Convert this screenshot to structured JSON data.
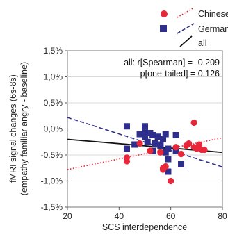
{
  "chart_data": {
    "type": "scatter",
    "xlabel": "SCS interdependence",
    "ylabel_lines": [
      "fMRI signal changes (6s-8s)",
      "(empathy familiar angry - baseline)"
    ],
    "xlim": [
      20,
      80
    ],
    "ylim": [
      -1.5,
      1.5
    ],
    "x_ticks": [
      20,
      40,
      60,
      80
    ],
    "x_tick_labels": [
      "20",
      "40",
      "60",
      "80"
    ],
    "y_ticks": [
      1.5,
      1.0,
      0.5,
      0.0,
      -0.5,
      -1.0,
      -1.5
    ],
    "y_tick_labels": [
      "1,5%",
      "1,0%",
      "0,5%",
      "0,0%",
      "-0,5%",
      "-1,0%",
      "-1,5%"
    ],
    "annotations": [
      "all: r[Spearman] = -0.209",
      "p[one-tailed] = 0.126"
    ],
    "legend_position": "top-right",
    "colors": {
      "chinese": "#e8283a",
      "germans": "#2e2e8c",
      "all": "#111111"
    },
    "series": [
      {
        "name": "Chinese",
        "marker": "circle",
        "points": [
          [
            43,
            -0.62
          ],
          [
            43,
            -0.55
          ],
          [
            48,
            -0.28
          ],
          [
            52,
            -0.42
          ],
          [
            56,
            -0.45
          ],
          [
            57,
            -0.75
          ],
          [
            58,
            -0.72
          ],
          [
            57,
            -0.78
          ],
          [
            60,
            -1.0
          ],
          [
            62,
            -0.35
          ],
          [
            64,
            -0.48
          ],
          [
            66,
            -0.32
          ],
          [
            67,
            -0.28
          ],
          [
            69,
            0.12
          ],
          [
            69,
            -0.35
          ],
          [
            70,
            -0.38
          ],
          [
            71,
            -0.3
          ],
          [
            72,
            -0.4
          ],
          [
            73,
            -0.4
          ]
        ],
        "fit_line": {
          "style": "dotted",
          "x": [
            20,
            80
          ],
          "y": [
            -0.78,
            -0.17
          ]
        }
      },
      {
        "name": "Germans",
        "marker": "square",
        "points": [
          [
            43,
            0.05
          ],
          [
            43,
            -0.38
          ],
          [
            46,
            -0.3
          ],
          [
            48,
            -0.1
          ],
          [
            50,
            0.05
          ],
          [
            50,
            -0.05
          ],
          [
            50,
            -0.15
          ],
          [
            51,
            -0.25
          ],
          [
            52,
            -0.08
          ],
          [
            53,
            -0.12
          ],
          [
            53,
            -0.42
          ],
          [
            54,
            -0.28
          ],
          [
            55,
            -0.15
          ],
          [
            56,
            -0.3
          ],
          [
            56,
            -0.32
          ],
          [
            57,
            -0.2
          ],
          [
            58,
            -0.1
          ],
          [
            58,
            -0.45
          ],
          [
            59,
            -0.38
          ],
          [
            59,
            -0.82
          ],
          [
            62,
            -0.12
          ],
          [
            62,
            -0.42
          ],
          [
            64,
            -0.68
          ],
          [
            59,
            -0.58
          ]
        ],
        "fit_line": {
          "style": "dashed",
          "x": [
            20,
            80
          ],
          "y": [
            0.22,
            -0.73
          ]
        }
      },
      {
        "name": "all",
        "marker": "line",
        "points": [],
        "fit_line": {
          "style": "solid",
          "x": [
            20,
            80
          ],
          "y": [
            -0.2,
            -0.45
          ]
        }
      }
    ]
  }
}
